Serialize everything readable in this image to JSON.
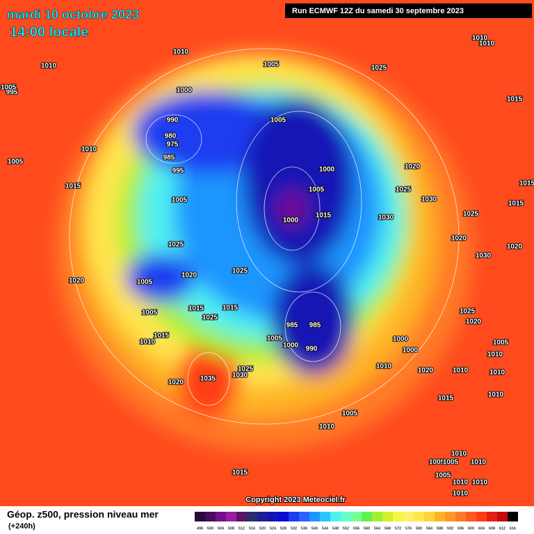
{
  "header": {
    "date": "mardi 10 octobre 2023",
    "time": "14:00 locale",
    "run": "Run ECMWF 12Z du samedi 30 septembre 2023"
  },
  "footer": {
    "title": "Géop. z500, pression niveau mer",
    "lead": "(+240h)",
    "copyright": "Copyright 2023 Meteociel.fr"
  },
  "legend": {
    "values": [
      "496",
      "500",
      "504",
      "508",
      "512",
      "516",
      "520",
      "524",
      "528",
      "532",
      "536",
      "540",
      "544",
      "548",
      "552",
      "556",
      "560",
      "564",
      "568",
      "572",
      "576",
      "580",
      "584",
      "588",
      "592",
      "596",
      "600",
      "604",
      "608",
      "612",
      "616"
    ],
    "colors": [
      "#2a0a3c",
      "#4a0a5e",
      "#7a0a8c",
      "#9a1ea0",
      "#5a1464",
      "#2a2a6e",
      "#1e1e96",
      "#1414b4",
      "#0a0ad2",
      "#1e3cf0",
      "#2864ff",
      "#1e96ff",
      "#28c8ff",
      "#50f0f0",
      "#64ffc8",
      "#78ff96",
      "#64f050",
      "#a0f032",
      "#d2f028",
      "#f5f546",
      "#fff064",
      "#ffe650",
      "#ffd23c",
      "#ffb428",
      "#ff9628",
      "#ff7828",
      "#ff5a1e",
      "#ff3c14",
      "#e61e14",
      "#c80a0a",
      "#000000"
    ]
  },
  "map": {
    "labels": [
      "1010",
      "1010",
      "1005",
      "1025",
      "1010",
      "1010",
      "1000",
      "1015",
      "990",
      "1005",
      "980",
      "975",
      "1010",
      "985",
      "1005",
      "1020",
      "995",
      "1000",
      "1015",
      "1005",
      "1025",
      "1030",
      "1005",
      "1015",
      "1015",
      "1030",
      "1025",
      "1000",
      "1020",
      "1020",
      "1025",
      "1030",
      "1025",
      "1020",
      "1005",
      "1020",
      "1015",
      "1015",
      "1025",
      "1005",
      "985",
      "985",
      "1025",
      "1020",
      "1015",
      "1010",
      "1005",
      "1000",
      "1000",
      "990",
      "1000",
      "1005",
      "1010",
      "1010",
      "1020",
      "1025",
      "1030",
      "1035",
      "1020",
      "1010",
      "1010",
      "1015",
      "1010",
      "1005",
      "1010",
      "1010",
      "1005",
      "1005",
      "1010",
      "1015",
      "1005",
      "1010",
      "1010",
      "1010",
      "995",
      "1005",
      "1015"
    ]
  }
}
